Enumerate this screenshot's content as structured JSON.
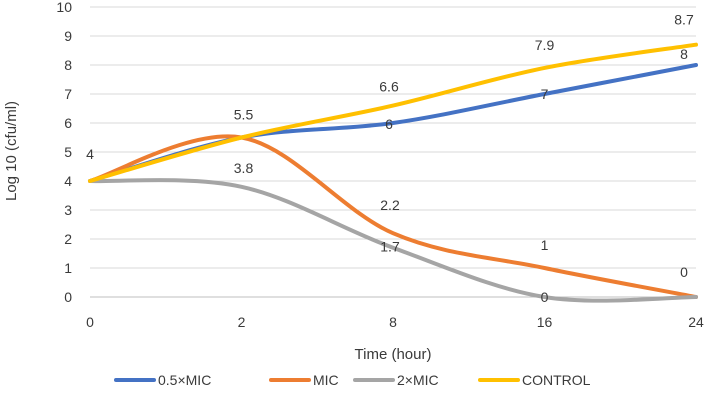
{
  "chart_data": {
    "type": "line",
    "title": "",
    "xlabel": "Time (hour)",
    "ylabel": "Log 10 (cfu/ml)",
    "categories": [
      "0",
      "2",
      "8",
      "16",
      "24"
    ],
    "ylim": [
      0,
      10
    ],
    "yticks": [
      "0",
      "1",
      "2",
      "3",
      "4",
      "5",
      "6",
      "7",
      "8",
      "9",
      "10"
    ],
    "grid": true,
    "legend_position": "bottom",
    "series": [
      {
        "name": "0.5×MIC",
        "color": "#4472C4",
        "values": [
          4,
          5.5,
          6,
          7,
          8
        ]
      },
      {
        "name": "MIC",
        "color": "#ED7D31",
        "values": [
          4,
          5.5,
          2.2,
          1,
          0
        ]
      },
      {
        "name": "2×MIC",
        "color": "#A5A5A5",
        "values": [
          4,
          3.8,
          1.7,
          0,
          0
        ]
      },
      {
        "name": "CONTROL",
        "color": "#FFC000",
        "values": [
          4,
          5.5,
          6.6,
          7.9,
          8.7
        ]
      }
    ],
    "data_labels": [
      {
        "text": "4",
        "category": 0,
        "value": 4
      },
      {
        "text": "5.5",
        "category": 1,
        "value": 5.5
      },
      {
        "text": "3.8",
        "category": 1,
        "value": 3.8
      },
      {
        "text": "6.6",
        "category": 2,
        "value": 6.6
      },
      {
        "text": "6",
        "category": 2,
        "value": 6
      },
      {
        "text": "2.2",
        "category": 2,
        "value": 2.2
      },
      {
        "text": "1.7",
        "category": 2,
        "value": 1.7
      },
      {
        "text": "7.9",
        "category": 3,
        "value": 7.9
      },
      {
        "text": "7",
        "category": 3,
        "value": 7
      },
      {
        "text": "1",
        "category": 3,
        "value": 1
      },
      {
        "text": "0",
        "category": 3,
        "value": 0
      },
      {
        "text": "8.7",
        "category": 4,
        "value": 8.7
      },
      {
        "text": "8",
        "category": 4,
        "value": 8
      },
      {
        "text": "0",
        "category": 4,
        "value": 0
      }
    ]
  }
}
